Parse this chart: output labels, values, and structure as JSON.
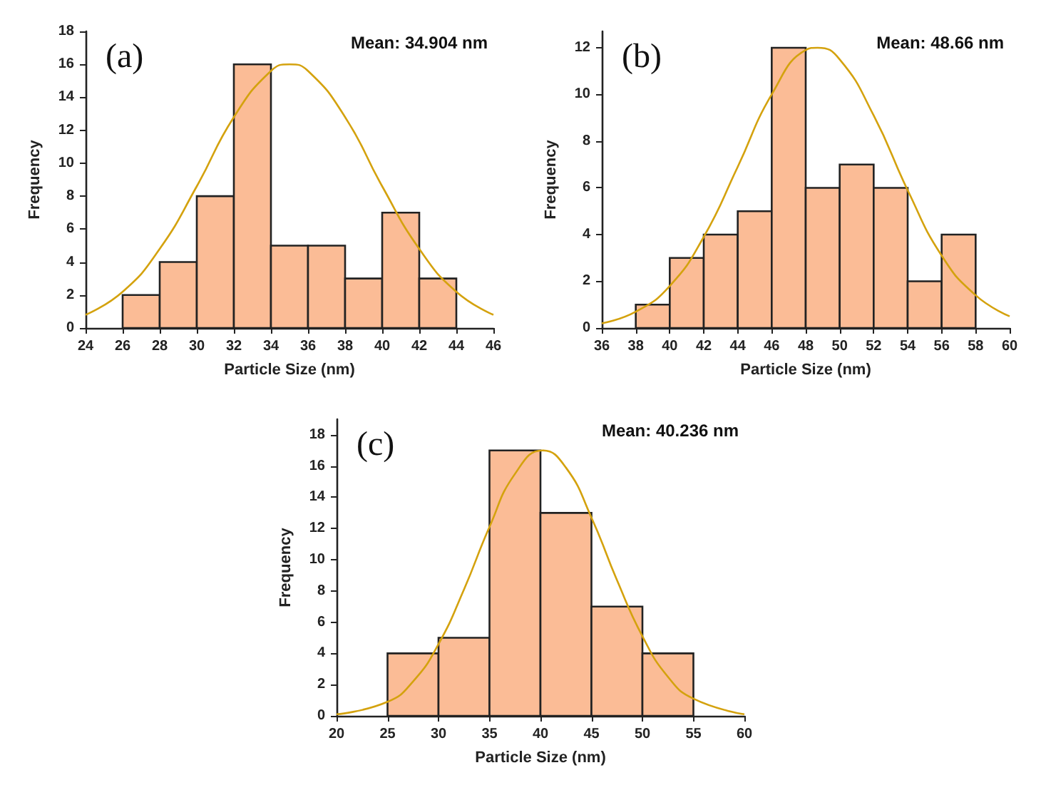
{
  "chart_data": [
    {
      "type": "histogram",
      "annotations": [
        "(a)",
        "Mean: 34.904 nm"
      ],
      "xlabel": "Particle Size (nm)",
      "ylabel": "Frequency",
      "bins": [
        26,
        28,
        30,
        32,
        34,
        36,
        38,
        40,
        42,
        44
      ],
      "values": [
        2,
        4,
        8,
        16,
        5,
        5,
        3,
        7,
        3
      ],
      "color": "#fbbc96",
      "xlim": [
        24,
        46
      ],
      "xticks": [
        24,
        26,
        28,
        30,
        32,
        34,
        36,
        38,
        40,
        42,
        44,
        46
      ],
      "ylim": [
        0,
        18
      ],
      "yticks": [
        0,
        2,
        4,
        6,
        8,
        10,
        12,
        14,
        16,
        18
      ],
      "series": [
        {
          "type": "line",
          "color": "#d4a20e",
          "x": [
            24,
            26,
            28,
            30,
            32,
            34,
            35,
            36,
            38,
            40,
            42,
            44,
            46
          ],
          "values": [
            0.8,
            2.2,
            4.8,
            8.6,
            12.8,
            15.6,
            16,
            15.6,
            12.8,
            8.6,
            4.8,
            2.2,
            0.8
          ]
        }
      ]
    },
    {
      "type": "histogram",
      "annotations": [
        "(b)",
        "Mean: 48.66 nm"
      ],
      "xlabel": "Particle Size (nm)",
      "ylabel": "Frequency",
      "bins": [
        38,
        40,
        42,
        44,
        46,
        48,
        50,
        52,
        54,
        56,
        58
      ],
      "values": [
        1,
        3,
        4,
        5,
        12,
        6,
        7,
        6,
        2,
        4
      ],
      "color": "#fbbc96",
      "xlim": [
        36,
        60
      ],
      "xticks": [
        36,
        38,
        40,
        42,
        44,
        46,
        48,
        50,
        52,
        54,
        56,
        58,
        60
      ],
      "ylim": [
        0,
        12.7
      ],
      "yticks": [
        0,
        2,
        4,
        6,
        8,
        10,
        12
      ],
      "series": [
        {
          "type": "line",
          "color": "#d4a20e",
          "x": [
            36,
            38,
            40,
            42,
            44,
            46,
            48,
            48.7,
            50,
            52,
            54,
            56,
            58,
            60
          ],
          "values": [
            0.2,
            0.7,
            1.8,
            3.9,
            6.9,
            10,
            11.9,
            12,
            11.5,
            9.1,
            5.9,
            3.1,
            1.4,
            0.5
          ]
        }
      ]
    },
    {
      "type": "histogram",
      "annotations": [
        "(c)",
        "Mean: 40.236 nm"
      ],
      "xlabel": "Particle Size (nm)",
      "ylabel": "Frequency",
      "bins": [
        25,
        30,
        35,
        40,
        45,
        50,
        55
      ],
      "values": [
        4,
        5,
        17,
        13,
        7,
        4
      ],
      "color": "#fbbc96",
      "xlim": [
        20,
        60
      ],
      "xticks": [
        20,
        25,
        30,
        35,
        40,
        45,
        50,
        55,
        60
      ],
      "ylim": [
        0,
        19
      ],
      "yticks": [
        0,
        2,
        4,
        6,
        8,
        10,
        12,
        14,
        16,
        18
      ],
      "series": [
        {
          "type": "line",
          "color": "#d4a20e",
          "x": [
            20,
            25,
            27.5,
            30,
            32.5,
            35,
            37.5,
            40.2,
            42.5,
            45,
            47.5,
            50,
            52.5,
            55,
            60
          ],
          "values": [
            0.1,
            0.9,
            2.2,
            4.6,
            8.1,
            12.1,
            15.5,
            17,
            15.9,
            12.7,
            8.7,
            5.1,
            2.5,
            1.1,
            0.1
          ]
        }
      ]
    }
  ]
}
